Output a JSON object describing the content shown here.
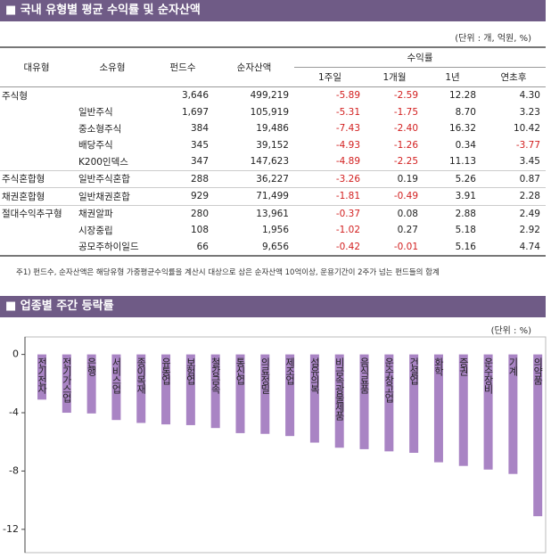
{
  "section1": {
    "title": "■ 국내 유형별 평균 수익률 및 순자산액",
    "unit": "(단위 : 개, 억원, %)"
  },
  "table": {
    "headers": [
      "대유형",
      "소유형",
      "펀드수",
      "순자산액",
      "수익률"
    ],
    "subheaders": [
      "1주일",
      "1개월",
      "1년",
      "연초후"
    ],
    "rows": [
      {
        "group": "주식형",
        "cells": [
          "3,646",
          "499,219",
          "-5.89",
          "-2.59",
          "12.28",
          "4.30"
        ]
      },
      {
        "sub": "일반주식",
        "cells": [
          "1,697",
          "105,919",
          "-5.31",
          "-1.75",
          "8.70",
          "3.23"
        ]
      },
      {
        "sub": "중소형주식",
        "cells": [
          "384",
          "19,486",
          "-7.43",
          "-2.40",
          "16.32",
          "10.42"
        ]
      },
      {
        "sub": "배당주식",
        "cells": [
          "345",
          "39,152",
          "-4.93",
          "-1.26",
          "0.34",
          "-3.77"
        ]
      },
      {
        "sub": "K200인덱스",
        "cells": [
          "347",
          "147,623",
          "-4.89",
          "-2.25",
          "11.13",
          "3.45"
        ]
      },
      {
        "group": "주식혼합형",
        "sub": "일반주식혼합",
        "cells": [
          "288",
          "36,227",
          "-3.26",
          "0.19",
          "5.26",
          "0.87"
        ]
      },
      {
        "group": "채권혼합형",
        "sub": "일반채권혼합",
        "cells": [
          "929",
          "71,499",
          "-1.81",
          "-0.49",
          "3.91",
          "2.28"
        ]
      },
      {
        "group": "절대수익추구형",
        "sub": "채권알파",
        "cells": [
          "280",
          "13,961",
          "-0.37",
          "0.08",
          "2.88",
          "2.49"
        ]
      },
      {
        "sub": "시장중립",
        "cells": [
          "108",
          "1,956",
          "-1.02",
          "0.27",
          "5.18",
          "2.92"
        ]
      },
      {
        "sub": "공모주하이일드",
        "cells": [
          "66",
          "9,656",
          "-0.42",
          "-0.01",
          "5.16",
          "4.74"
        ]
      }
    ],
    "footnote": "주1) 펀드수, 순자산액은 해당유형 가중평균수익률을 계산시 대상으로 삼은 순자산액 10억이상, 운용기간이 2주가 넘는 펀드들의 합계"
  },
  "section2": {
    "title": "■ 업종별 주간 등락률",
    "unit": "(단위 : %)"
  },
  "chart_data": {
    "type": "bar",
    "color": "#a984c4",
    "categories": [
      "전기전자",
      "전기가스업",
      "은행",
      "서비스업",
      "종이목재",
      "유통업",
      "보험업",
      "철강금속",
      "통신업",
      "의료정밀",
      "제조업",
      "섬유의복",
      "비금속광물제품",
      "음식료품",
      "운수창고업",
      "건설업",
      "화학",
      "증권",
      "운수장비",
      "기계",
      "의약품"
    ],
    "values": [
      -3.1,
      -4.0,
      -4.05,
      -4.5,
      -4.7,
      -4.8,
      -4.85,
      -5.05,
      -5.4,
      -5.45,
      -5.6,
      -6.05,
      -6.4,
      -6.5,
      -6.65,
      -6.75,
      -7.4,
      -7.65,
      -7.9,
      -8.2,
      -11.1
    ],
    "ylim": [
      -13.6,
      1.2
    ],
    "yticks": [
      0,
      -4,
      -8,
      -12
    ]
  }
}
